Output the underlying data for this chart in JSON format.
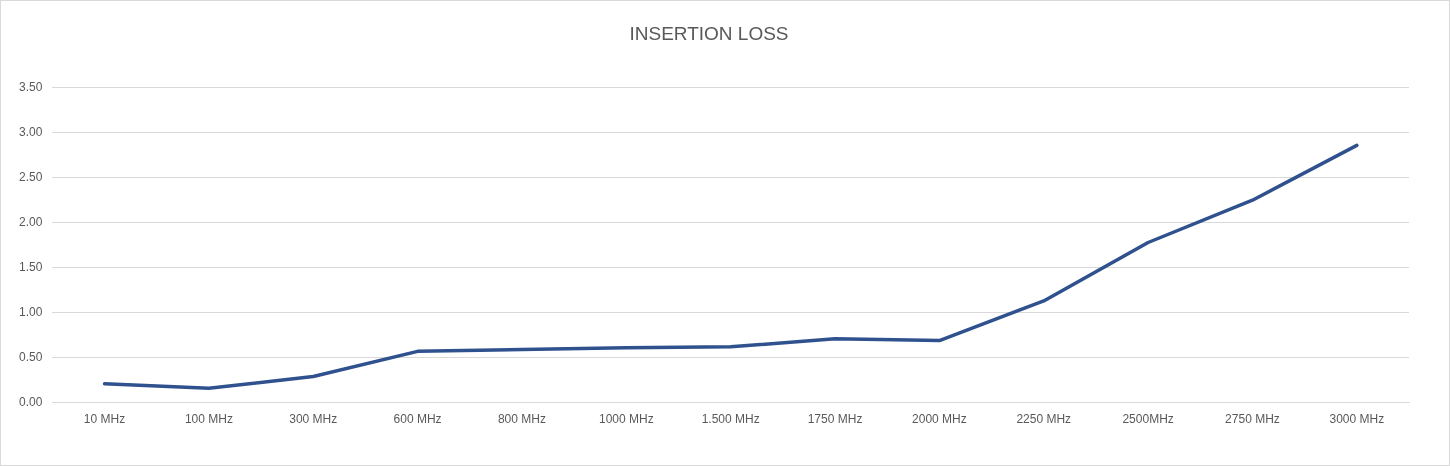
{
  "chart_data": {
    "type": "line",
    "title": "INSERTION LOSS",
    "categories": [
      "10 MHz",
      "100 MHz",
      "300 MHz",
      "600 MHz",
      "800 MHz",
      "1000 MHz",
      "1.500 MHz",
      "1750 MHz",
      "2000 MHz",
      "2250 MHz",
      "2500MHz",
      "2750 MHz",
      "3000 MHz"
    ],
    "series": [
      {
        "color": "#2f528f",
        "values": [
          0.21,
          0.16,
          0.29,
          0.57,
          0.59,
          0.61,
          0.62,
          0.71,
          0.69,
          1.13,
          1.78,
          2.25,
          2.86
        ]
      }
    ],
    "ylim": [
      0,
      3.5
    ],
    "yticks": [
      {
        "value": 0,
        "label": "0.00"
      },
      {
        "value": 0.5,
        "label": "0.50"
      },
      {
        "value": 1,
        "label": "1.00"
      },
      {
        "value": 1.5,
        "label": "1.50"
      },
      {
        "value": 2,
        "label": "2.00"
      },
      {
        "value": 2.5,
        "label": "2.50"
      },
      {
        "value": 3,
        "label": "3.00"
      },
      {
        "value": 3.5,
        "label": "3.50"
      }
    ],
    "grid": "y",
    "legend": false,
    "marker": "none",
    "line_style": "solid"
  }
}
